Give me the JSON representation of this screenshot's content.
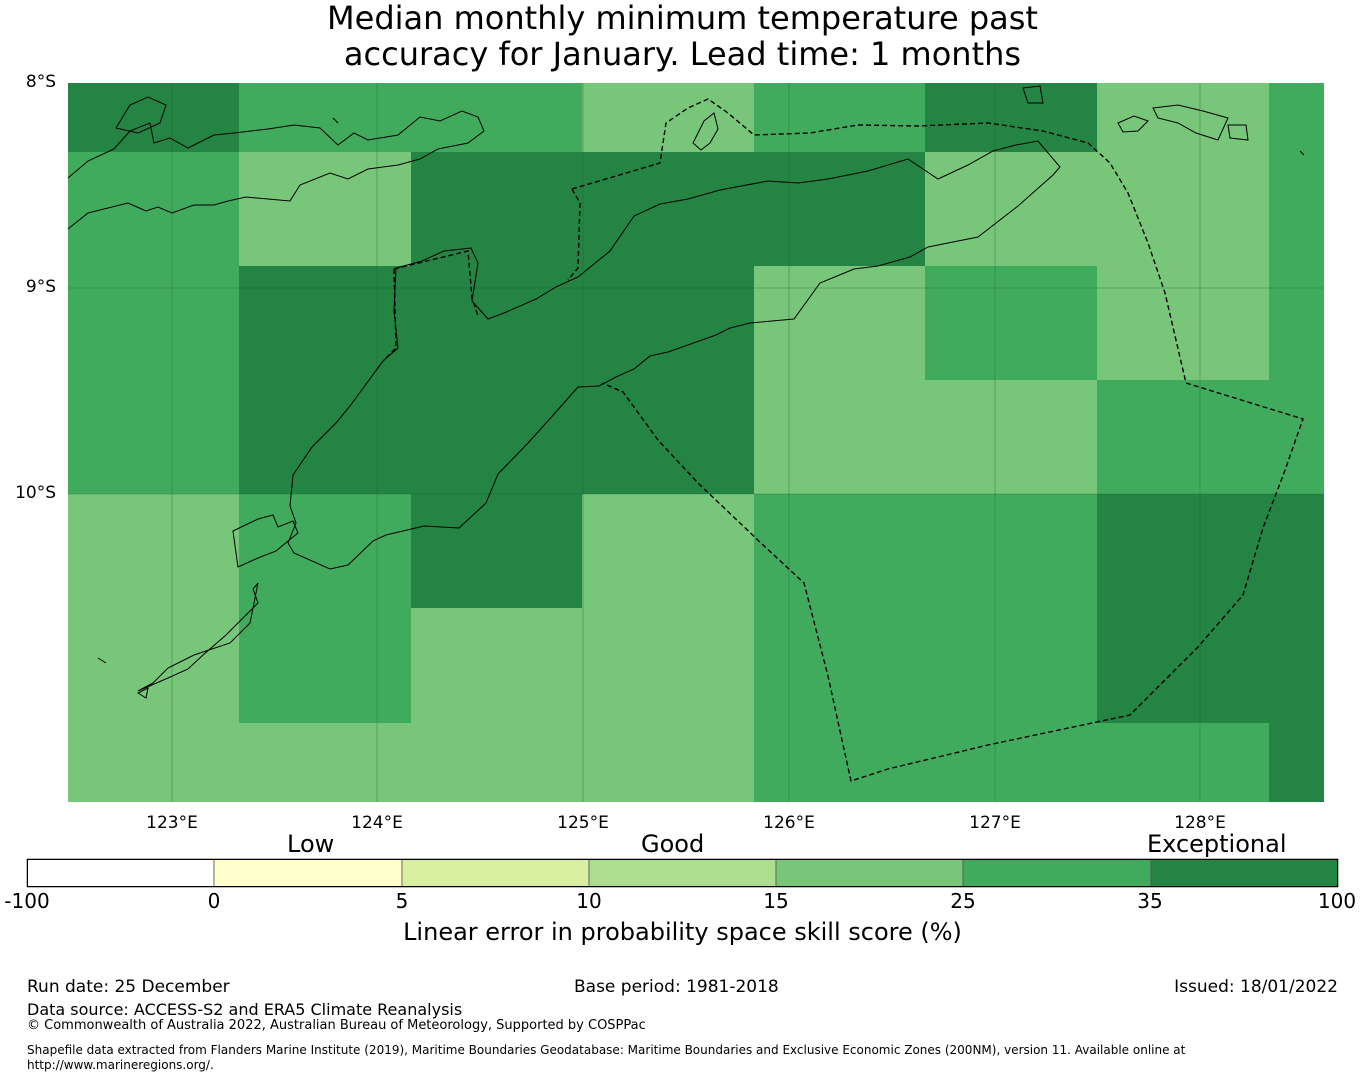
{
  "title": {
    "line1": "Median monthly minimum temperature past",
    "line2": "accuracy for January. Lead time: 1 months"
  },
  "map": {
    "lat_labels": [
      "8°S",
      "9°S",
      "10°S"
    ],
    "lon_labels": [
      "123°E",
      "124°E",
      "125°E",
      "126°E",
      "127°E",
      "128°E"
    ],
    "grid_values_pct": [
      [
        40,
        30,
        30,
        20,
        30,
        40,
        20,
        30
      ],
      [
        30,
        20,
        40,
        40,
        40,
        15,
        20,
        30
      ],
      [
        30,
        40,
        40,
        40,
        15,
        30,
        20,
        30
      ],
      [
        30,
        40,
        40,
        40,
        20,
        20,
        30,
        30
      ],
      [
        20,
        30,
        40,
        20,
        30,
        30,
        40,
        40
      ],
      [
        20,
        30,
        20,
        20,
        30,
        30,
        40,
        40
      ],
      [
        20,
        20,
        20,
        20,
        30,
        30,
        30,
        40
      ]
    ]
  },
  "colorbar": {
    "category_labels": [
      "Low",
      "Good",
      "Exceptional"
    ],
    "ticks": [
      "-100",
      "0",
      "5",
      "10",
      "15",
      "25",
      "35",
      "100"
    ],
    "colors": [
      "#ffffff",
      "#ffffcc",
      "#d9f0a3",
      "#addd8e",
      "#78c679",
      "#41ab5d",
      "#238443"
    ],
    "title": "Linear error in probability space skill score (%)"
  },
  "footer": {
    "run_date": "Run date: 25 December",
    "base_period": "Base period: 1981-2018",
    "issued": "Issued: 18/01/2022",
    "data_source": "Data source: ACCESS-S2 and ERA5 Climate Reanalysis",
    "copyright": "© Commonwealth of Australia 2022, Australian Bureau of Meteorology, Supported by COSPPac",
    "shapefile_line1": "Shapefile data extracted from Flanders Marine Institute (2019), Maritime Boundaries Geodatabase: Maritime Boundaries and Exclusive Economic Zones (200NM), version 11. Available online at",
    "shapefile_line2": "http://www.marineregions.org/."
  }
}
